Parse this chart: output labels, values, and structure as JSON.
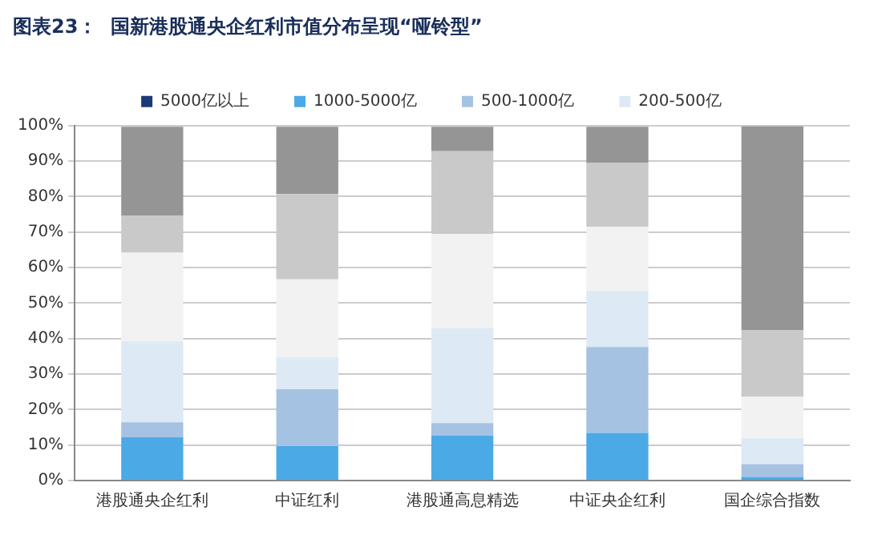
{
  "chart_data": {
    "type": "bar",
    "title": "图表23：  国新港股通央企红利市值分布呈现“哑铃型”",
    "stacked": true,
    "categories": [
      "港股通央企红利",
      "中证红利",
      "港股通高息精选",
      "中证央企红利",
      "国企综合指数"
    ],
    "series": [
      {
        "name": "5000亿以上",
        "color": "#1b3a78",
        "values": [
          null,
          null,
          null,
          null,
          null
        ]
      },
      {
        "name": "1000-5000亿",
        "color": "#4baae6",
        "values": [
          12.2,
          9.7,
          12.7,
          13.4,
          1.0
        ]
      },
      {
        "name": "500-1000亿",
        "color": "#a6c2e2",
        "values": [
          4.2,
          16,
          3.5,
          24.2,
          3.6
        ]
      },
      {
        "name": "200-500亿",
        "color": "#dde9f5",
        "values": [
          22.8,
          9,
          26.7,
          15.8,
          7.3
        ]
      },
      {
        "color": "#f2f2f2",
        "values": [
          25,
          22,
          26.6,
          18.1,
          11.7
        ]
      },
      {
        "color": "#c9c9c9",
        "values": [
          10.5,
          24,
          23.3,
          18.1,
          18.7
        ]
      },
      {
        "color": "#959595",
        "values": [
          25,
          19,
          6.9,
          10.1,
          57.5
        ]
      }
    ],
    "ylim": [
      0,
      100
    ],
    "yticks": [
      {
        "value": 0,
        "label": "0%"
      },
      {
        "value": 10,
        "label": "10%"
      },
      {
        "value": 20,
        "label": "20%"
      },
      {
        "value": 30,
        "label": "30%"
      },
      {
        "value": 40,
        "label": "40%"
      },
      {
        "value": 50,
        "label": "50%"
      },
      {
        "value": 60,
        "label": "60%"
      },
      {
        "value": 70,
        "label": "70%"
      },
      {
        "value": 80,
        "label": "80%"
      },
      {
        "value": 90,
        "label": "90%"
      },
      {
        "value": 100,
        "label": "100%"
      }
    ],
    "grid": "y",
    "legend": "top"
  }
}
